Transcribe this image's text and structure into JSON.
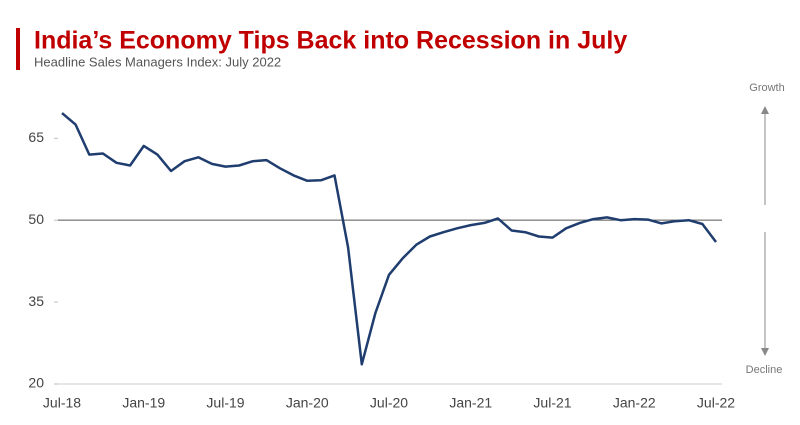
{
  "chart_data": {
    "type": "line",
    "title": "India’s Economy Tips Back into Recession in July",
    "subtitle": "Headline Sales Managers Index: July 2022",
    "annotations": {
      "top": "Growth",
      "bottom": "Decline"
    },
    "categories": [
      "Jul-18",
      null,
      null,
      null,
      null,
      null,
      "Jan-19",
      null,
      null,
      null,
      null,
      null,
      "Jul-19",
      null,
      null,
      null,
      null,
      null,
      "Jan-20",
      null,
      null,
      null,
      null,
      null,
      "Jul-20",
      null,
      null,
      null,
      null,
      null,
      "Jan-21",
      null,
      null,
      null,
      null,
      null,
      "Jul-21",
      null,
      null,
      null,
      null,
      null,
      "Jan-22",
      null,
      null,
      null,
      null,
      null,
      "Jul-22"
    ],
    "series": [
      {
        "name": "Headline Sales Managers Index",
        "color": "#1f3d6e",
        "values": [
          69.6,
          67.5,
          62,
          62.2,
          60.5,
          60,
          63.6,
          62,
          59,
          60.8,
          61.5,
          60.3,
          59.8,
          60,
          60.8,
          61,
          59.5,
          58.2,
          57.2,
          57.3,
          58.2,
          45,
          23.6,
          33,
          40,
          43,
          45.5,
          47,
          47.8,
          48.5,
          49.1,
          49.5,
          50.3,
          48.1,
          47.8,
          47,
          46.8,
          48.5,
          49.5,
          50.2,
          50.5,
          50,
          50.2,
          50.1,
          49.4,
          49.8,
          50,
          49.3,
          46
        ]
      }
    ],
    "ylim": [
      20,
      72
    ],
    "yticks": [
      20,
      35,
      50,
      65
    ],
    "reference_line": 50,
    "grid": false
  }
}
